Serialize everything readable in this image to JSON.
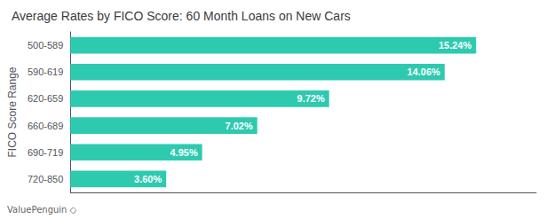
{
  "chart_data": {
    "type": "bar",
    "orientation": "horizontal",
    "title": "Average Rates by FICO Score: 60 Month Loans on New Cars",
    "ylabel": "FICO Score Range",
    "categories": [
      "720-850",
      "690-719",
      "660-689",
      "620-659",
      "590-619",
      "500-589"
    ],
    "values": [
      3.6,
      4.95,
      7.02,
      9.72,
      14.06,
      15.24
    ],
    "value_labels": [
      "3.60%",
      "4.95%",
      "7.02%",
      "9.72%",
      "14.06%",
      "15.24%"
    ],
    "data_labels": true,
    "color": "#2ecab0",
    "xlim": [
      0,
      17.5
    ],
    "xticks": [],
    "tick_labels": "y",
    "grid": false,
    "annotations": [
      "ValuePenguin",
      "◇"
    ]
  }
}
